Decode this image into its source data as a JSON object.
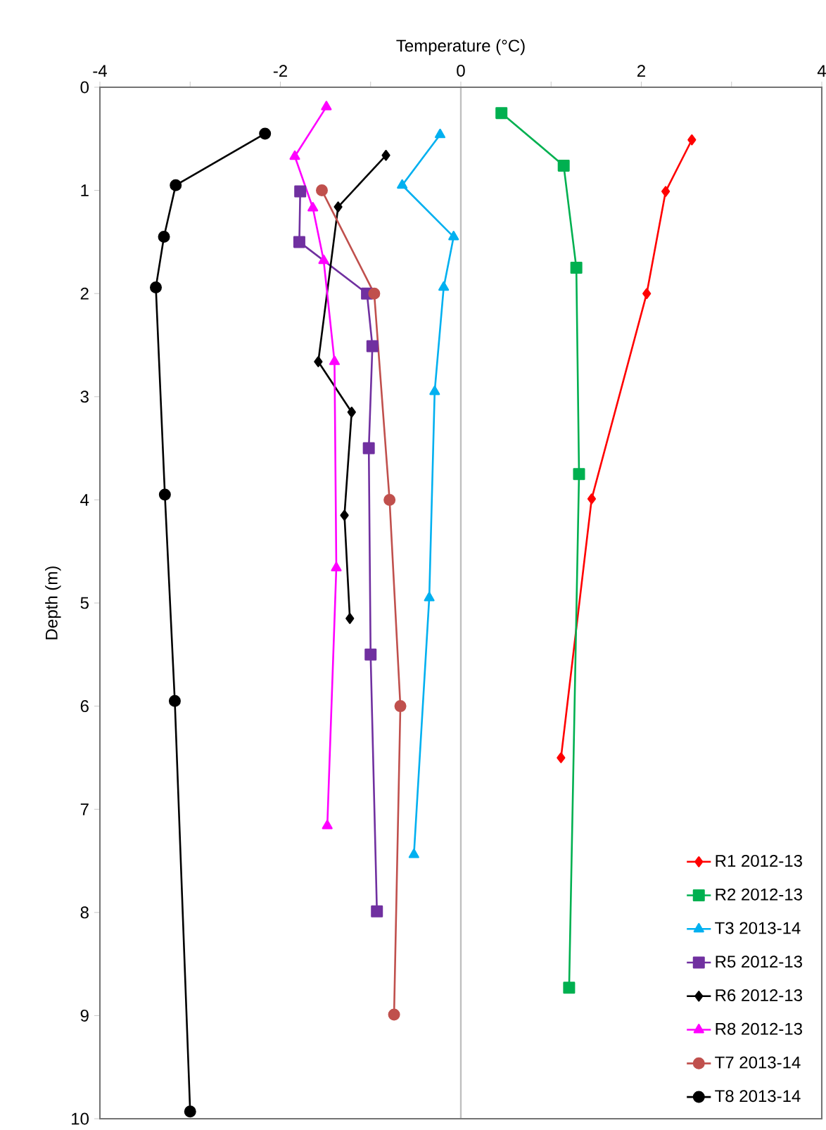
{
  "chart_data": {
    "type": "line",
    "xlabel": "Temperature (°C)",
    "ylabel": "Depth (m)",
    "xlim": [
      -4,
      4
    ],
    "xticks": [
      -4,
      {
        "value": -3,
        "label": null
      },
      -2,
      {
        "value": -1,
        "label": null
      },
      0,
      {
        "value": 1,
        "label": null
      },
      2,
      {
        "value": 3,
        "label": null
      },
      4
    ],
    "ylim": [
      10,
      0
    ],
    "yticks": [
      0,
      1,
      2,
      3,
      4,
      5,
      6,
      7,
      8,
      9,
      10
    ],
    "grid": false,
    "legend": "bottom right",
    "line_style": "solid",
    "ref_lines": [
      {
        "axis": "x",
        "value": 0,
        "color": "#bfbfbf"
      }
    ],
    "series": [
      {
        "name": "R1 2012-13",
        "color": "#ff0000",
        "marker": "diamond",
        "x": [
          2.56,
          2.27,
          2.06,
          1.45,
          1.11
        ],
        "values": [
          0.51,
          1.01,
          2.0,
          3.99,
          6.5
        ]
      },
      {
        "name": "R2 2012-13",
        "color": "#00b050",
        "marker": "square",
        "x": [
          0.45,
          1.14,
          1.28,
          1.31,
          1.2
        ],
        "values": [
          0.25,
          0.76,
          1.75,
          3.75,
          8.73
        ]
      },
      {
        "name": "T3 2013-14",
        "color": "#00b0f0",
        "marker": "triangle",
        "x": [
          -0.23,
          -0.65,
          -0.08,
          -0.19,
          -0.29,
          -0.35,
          -0.52
        ],
        "values": [
          0.46,
          0.95,
          1.45,
          1.94,
          2.95,
          4.95,
          7.44
        ]
      },
      {
        "name": "R5 2012-13",
        "color": "#7030a0",
        "marker": "square",
        "x": [
          -1.78,
          -1.79,
          -1.04,
          -0.98,
          -1.02,
          -1.0,
          -0.93
        ],
        "values": [
          1.01,
          1.5,
          2.0,
          2.51,
          3.5,
          5.5,
          7.99
        ]
      },
      {
        "name": "R6 2012-13",
        "color": "#000000",
        "marker": "diamond",
        "x": [
          -0.83,
          -1.36,
          -1.58,
          -1.21,
          -1.29,
          -1.23
        ],
        "values": [
          0.66,
          1.16,
          2.66,
          3.15,
          4.15,
          5.15
        ]
      },
      {
        "name": "R8 2012-13",
        "color": "#ff00ff",
        "marker": "triangle",
        "x": [
          -1.49,
          -1.84,
          -1.64,
          -1.52,
          -1.4,
          -1.38,
          -1.48
        ],
        "values": [
          0.19,
          0.67,
          1.17,
          1.68,
          2.66,
          4.66,
          7.16
        ]
      },
      {
        "name": "T7 2013-14",
        "color": "#c0504d",
        "marker": "circle",
        "x": [
          -1.54,
          -0.96,
          -0.79,
          -0.67,
          -0.74
        ],
        "values": [
          1.0,
          2.0,
          4.0,
          6.0,
          8.99
        ]
      },
      {
        "name": "T8 2013-14",
        "color": "#000000",
        "marker": "circle",
        "x": [
          -2.17,
          -3.16,
          -3.29,
          -3.38,
          -3.28,
          -3.17,
          -3.0
        ],
        "values": [
          0.45,
          0.95,
          1.45,
          1.94,
          3.95,
          5.95,
          9.93
        ]
      }
    ]
  }
}
